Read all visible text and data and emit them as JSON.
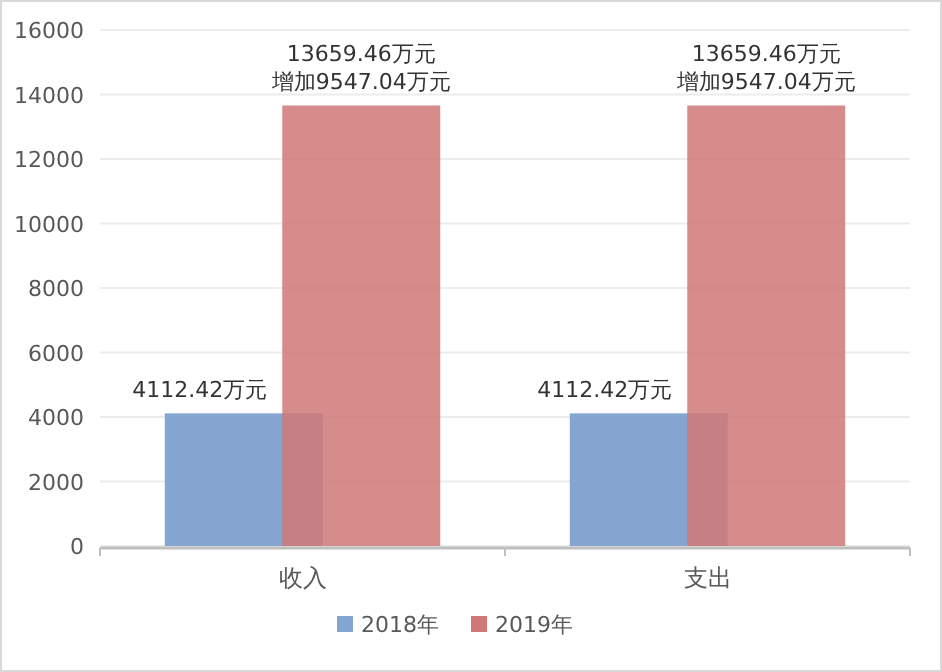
{
  "chart_data": {
    "type": "bar",
    "categories": [
      "收入",
      "支出"
    ],
    "series": [
      {
        "name": "2018年",
        "color": "#84a5d0",
        "values": [
          4112.42,
          4112.42
        ],
        "value_labels": [
          "4112.42万元",
          "4112.42万元"
        ]
      },
      {
        "name": "2019年",
        "color": "#d07878",
        "values": [
          13659.46,
          13659.46
        ],
        "value_labels": [
          "13659.46万元",
          "13659.46万元"
        ]
      }
    ],
    "annotations": [
      {
        "text": "增加9547.04万元",
        "x": "收入",
        "y": 13659.46
      },
      {
        "text": "增加9547.04万元",
        "x": "支出",
        "y": 13659.46
      }
    ],
    "ylim": [
      0,
      16000
    ],
    "yticks": [
      0,
      2000,
      4000,
      6000,
      8000,
      10000,
      12000,
      14000,
      16000
    ],
    "grid": "y",
    "legend": "bottom"
  }
}
